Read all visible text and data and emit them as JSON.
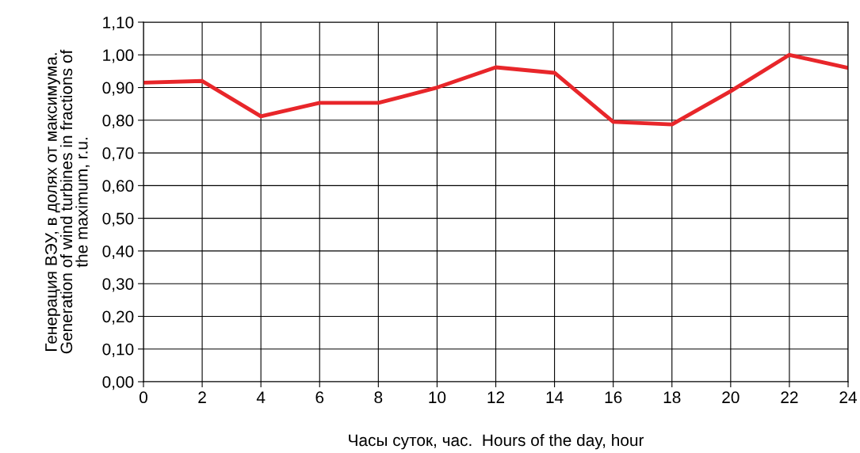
{
  "chart_data": {
    "type": "line",
    "xlabel": "Часы суток, час.  Hours of the day, hour",
    "ylabel": "Генерация ВЭУ, в долях от максимума.\nGeneration of wind turbines in fractions of\nthe maximum, r.u.",
    "x": [
      0,
      2,
      4,
      6,
      8,
      10,
      12,
      14,
      16,
      18,
      20,
      22,
      24
    ],
    "series": [
      {
        "color": "#e8262a",
        "values": [
          0.915,
          0.92,
          0.812,
          0.853,
          0.853,
          0.9,
          0.962,
          0.945,
          0.795,
          0.787,
          0.889,
          1.0,
          0.96
        ]
      }
    ],
    "xlim": [
      0,
      24
    ],
    "xticks": [
      0,
      2,
      4,
      6,
      8,
      10,
      12,
      14,
      16,
      18,
      20,
      22,
      24
    ],
    "ylim": [
      0,
      1.1
    ],
    "yticks": [
      {
        "value": 0,
        "label": "0,00"
      },
      {
        "value": 0.1,
        "label": "0,10"
      },
      {
        "value": 0.2,
        "label": "0,20"
      },
      {
        "value": 0.3,
        "label": "0,30"
      },
      {
        "value": 0.4,
        "label": "0,40"
      },
      {
        "value": 0.5,
        "label": "0,50"
      },
      {
        "value": 0.6,
        "label": "0,60"
      },
      {
        "value": 0.7,
        "label": "0,70"
      },
      {
        "value": 0.8,
        "label": "0,80"
      },
      {
        "value": 0.9,
        "label": "0,90"
      },
      {
        "value": 1.0,
        "label": "1,00"
      },
      {
        "value": 1.1,
        "label": "1,10"
      }
    ],
    "grid": true,
    "marker": "none",
    "line_style": "solid",
    "legend": false
  }
}
